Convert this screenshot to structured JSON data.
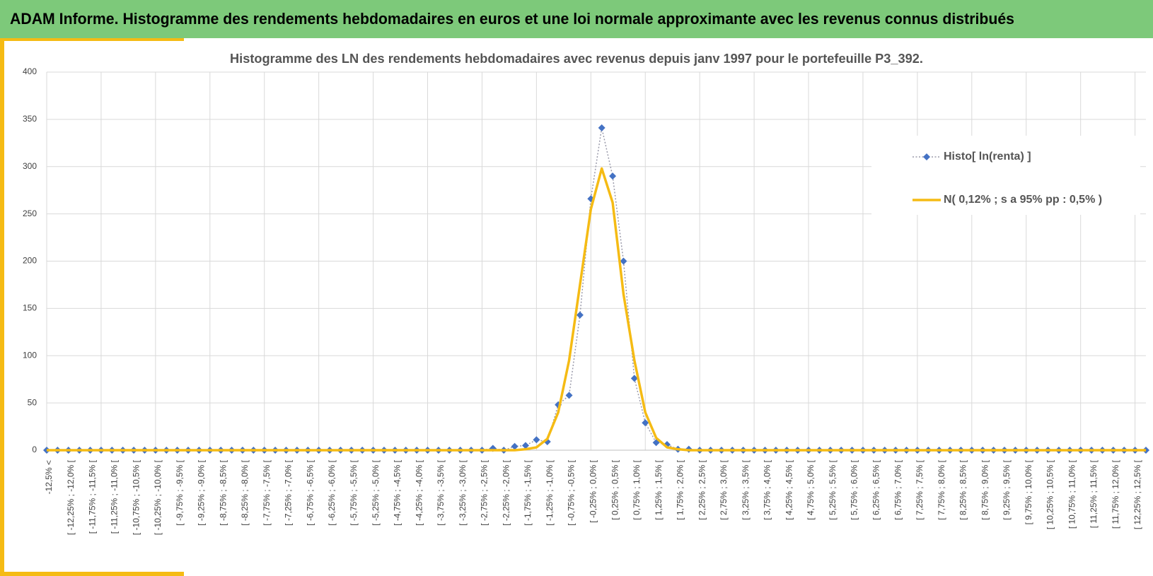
{
  "header": {
    "title": "ADAM Informe. Histogramme des rendements hebdomadaires en euros et une loi normale approximante avec les revenus connus distribués"
  },
  "chart_data": {
    "type": "line",
    "title": "Histogramme des LN des rendements hebdomadaires avec revenus depuis janv 1997 pour le portefeuille P3_392.",
    "categories": [
      "-12,5% <",
      null,
      "[ -12,25% ; -12,0% [",
      null,
      "[ -11,75% ; -11,5% [",
      null,
      "[ -11,25% ; -11,0% [",
      null,
      "[ -10,75% ; -10,5% [",
      null,
      "[ -10,25% ; -10,0% [",
      null,
      "[ -9,75% ; -9,5% [",
      null,
      "[ -9,25% ; -9,0% [",
      null,
      "[ -8,75% ; -8,5% [",
      null,
      "[ -8,25% ; -8,0% [",
      null,
      "[ -7,75% ; -7,5% [",
      null,
      "[ -7,25% ; -7,0% [",
      null,
      "[ -6,75% ; -6,5% [",
      null,
      "[ -6,25% ; -6,0% [",
      null,
      "[ -5,75% ; -5,5% [",
      null,
      "[ -5,25% ; -5,0% [",
      null,
      "[ -4,75% ; -4,5% [",
      null,
      "[ -4,25% ; -4,0% [",
      null,
      "[ -3,75% ; -3,5% [",
      null,
      "[ -3,25% ; -3,0% [",
      null,
      "[ -2,75% ; -2,5% [",
      null,
      "[ -2,25% ; -2,0% [",
      null,
      "[ -1,75% ; -1,5% [",
      null,
      "[ -1,25% ; -1,0% [",
      null,
      "[ -0,75% ; -0,5% [",
      null,
      "[ -0,25% ; 0,0% [",
      null,
      "[ 0,25% ; 0,5% [",
      null,
      "[ 0,75% ; 1,0% [",
      null,
      "[ 1,25% ; 1,5% [",
      null,
      "[ 1,75% ; 2,0% [",
      null,
      "[ 2,25% ; 2,5% [",
      null,
      "[ 2,75% ; 3,0% [",
      null,
      "[ 3,25% ; 3,5% [",
      null,
      "[ 3,75% ; 4,0% [",
      null,
      "[ 4,25% ; 4,5% [",
      null,
      "[ 4,75% ; 5,0% [",
      null,
      "[ 5,25% ; 5,5% [",
      null,
      "[ 5,75% ; 6,0% [",
      null,
      "[ 6,25% ; 6,5% [",
      null,
      "[ 6,75% ; 7,0% [",
      null,
      "[ 7,25% ; 7,5% [",
      null,
      "[ 7,75% ; 8,0% [",
      null,
      "[ 8,25% ; 8,5% [",
      null,
      "[ 8,75% ; 9,0% [",
      null,
      "[ 9,25% ; 9,5% [",
      null,
      "[ 9,75% ; 10,0% [",
      null,
      "[ 10,25% ; 10,5% [",
      null,
      "[ 10,75% ; 11,0% [",
      null,
      "[ 11,25% ; 11,5% [",
      null,
      "[ 11,75% ; 12,0% [",
      null,
      "[ 12,25% ; 12,5% [",
      null
    ],
    "series": [
      {
        "name": "Histo[ ln(renta) ]",
        "color": "#4472c4",
        "line_color": "#9a9aaa",
        "line_style": "dotted",
        "marker": "diamond",
        "values": [
          0,
          0,
          0,
          0,
          0,
          0,
          0,
          0,
          0,
          0,
          0,
          0,
          0,
          0,
          0,
          0,
          0,
          0,
          0,
          0,
          0,
          0,
          0,
          0,
          0,
          0,
          0,
          0,
          0,
          0,
          0,
          0,
          0,
          0,
          0,
          0,
          0,
          0,
          0,
          0,
          0,
          2,
          0,
          4,
          5,
          11,
          9,
          48,
          58,
          143,
          266,
          341,
          290,
          200,
          76,
          29,
          8,
          6,
          1,
          1,
          0,
          0,
          0,
          0,
          0,
          0,
          0,
          0,
          0,
          0,
          0,
          0,
          0,
          0,
          0,
          0,
          0,
          0,
          0,
          0,
          0,
          0,
          0,
          0,
          0,
          0,
          0,
          0,
          0,
          0,
          0,
          0,
          0,
          0,
          0,
          0,
          0,
          0,
          0,
          0,
          0,
          0
        ]
      },
      {
        "name": "N( 0,12% ; s a 95% pp : 0,5% )",
        "color": "#f5bb14",
        "line_style": "solid",
        "marker": "none",
        "values": [
          0,
          0,
          0,
          0,
          0,
          0,
          0,
          0,
          0,
          0,
          0,
          0,
          0,
          0,
          0,
          0,
          0,
          0,
          0,
          0,
          0,
          0,
          0,
          0,
          0,
          0,
          0,
          0,
          0,
          0,
          0,
          0,
          0,
          0,
          0,
          0,
          0,
          0,
          0,
          0,
          0,
          0,
          0,
          0,
          1,
          3,
          12,
          40,
          95,
          175,
          255,
          298,
          262,
          165,
          95,
          40,
          13,
          3,
          1,
          0,
          0,
          0,
          0,
          0,
          0,
          0,
          0,
          0,
          0,
          0,
          0,
          0,
          0,
          0,
          0,
          0,
          0,
          0,
          0,
          0,
          0,
          0,
          0,
          0,
          0,
          0,
          0,
          0,
          0,
          0,
          0,
          0,
          0,
          0,
          0,
          0,
          0,
          0,
          0,
          0,
          0,
          0
        ]
      }
    ],
    "ylim": [
      0,
      400
    ],
    "yticks": [
      0,
      50,
      100,
      150,
      200,
      250,
      300,
      350,
      400
    ],
    "grid": true,
    "legend": "upper right"
  }
}
